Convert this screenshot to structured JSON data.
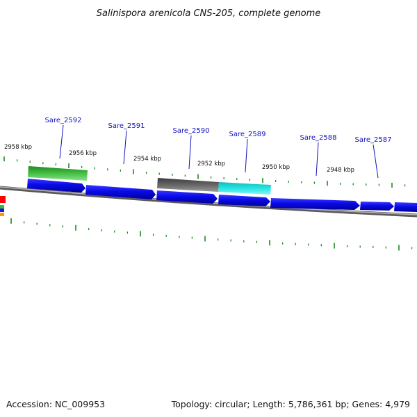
{
  "title": "Salinispora arenicola CNS-205, complete genome",
  "footer": {
    "accession": "Accession: NC_009953",
    "summary": "Topology: circular; Length: 5,786,361 bp; Genes: 4,979"
  },
  "scale_labels": [
    "2958 kbp",
    "2956 kbp",
    "2954 kbp",
    "2952 kbp",
    "2950 kbp",
    "2948 kbp"
  ],
  "genes": [
    {
      "name": "Sare_2592",
      "strand": "forward",
      "color": "#34b534"
    },
    {
      "name": "Sare_2591",
      "strand": "reverse",
      "color": "#1212d6"
    },
    {
      "name": "Sare_2590",
      "strand": "forward",
      "color": "#666666"
    },
    {
      "name": "Sare_2589",
      "strand": "forward",
      "color": "#19d2d2"
    },
    {
      "name": "Sare_2588",
      "strand": "reverse",
      "color": "#1212d6"
    },
    {
      "name": "Sare_2587",
      "strand": "reverse",
      "color": "#1212d6"
    }
  ],
  "colors": {
    "tick": "#1a8a1a",
    "backbone": "#888888",
    "label": "#1010c0"
  }
}
